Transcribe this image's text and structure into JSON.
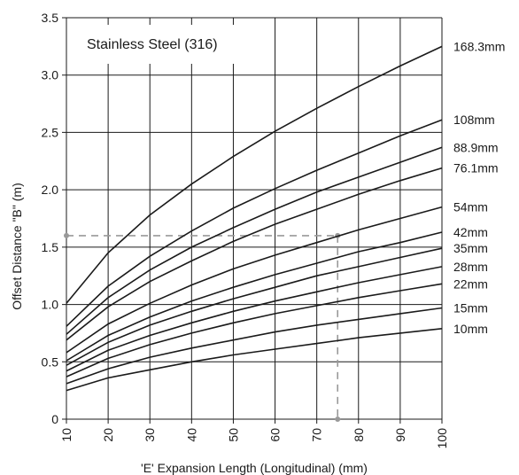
{
  "chart_data": {
    "type": "line",
    "title": "Stainless Steel (316)",
    "xlabel": "'E' Expansion Length (Longitudinal) (mm)",
    "ylabel": "Offset Distance \"B\" (m)",
    "x_ticks": [
      "10",
      "20",
      "30",
      "40",
      "50",
      "60",
      "70",
      "80",
      "90",
      "100"
    ],
    "y_ticks": [
      "0",
      "0.5",
      "1.0",
      "1.5",
      "2.0",
      "2.5",
      "3.0",
      "3.5"
    ],
    "xlim": [
      10,
      100
    ],
    "ylim": [
      0,
      3.5
    ],
    "grid": true,
    "legend": "labels at right end of each line",
    "x": [
      10,
      20,
      30,
      40,
      50,
      60,
      70,
      80,
      90,
      100
    ],
    "series": [
      {
        "name": "168.3mm",
        "values": [
          1.01,
          1.45,
          1.78,
          2.05,
          2.29,
          2.51,
          2.71,
          2.9,
          3.08,
          3.25
        ]
      },
      {
        "name": "108mm",
        "values": [
          0.81,
          1.16,
          1.42,
          1.64,
          1.84,
          2.01,
          2.17,
          2.32,
          2.47,
          2.61
        ]
      },
      {
        "name": "88.9mm",
        "values": [
          0.74,
          1.06,
          1.3,
          1.5,
          1.67,
          1.83,
          1.98,
          2.11,
          2.24,
          2.37
        ]
      },
      {
        "name": "76.1mm",
        "values": [
          0.69,
          0.98,
          1.2,
          1.38,
          1.55,
          1.7,
          1.83,
          1.96,
          2.08,
          2.19
        ]
      },
      {
        "name": "54mm",
        "values": [
          0.58,
          0.83,
          1.01,
          1.17,
          1.31,
          1.43,
          1.54,
          1.65,
          1.75,
          1.85
        ]
      },
      {
        "name": "42mm",
        "values": [
          0.51,
          0.73,
          0.89,
          1.03,
          1.15,
          1.26,
          1.36,
          1.46,
          1.54,
          1.63
        ]
      },
      {
        "name": "35mm",
        "values": [
          0.47,
          0.67,
          0.82,
          0.94,
          1.05,
          1.15,
          1.25,
          1.33,
          1.41,
          1.49
        ]
      },
      {
        "name": "28mm",
        "values": [
          0.42,
          0.6,
          0.73,
          0.84,
          0.94,
          1.03,
          1.11,
          1.19,
          1.26,
          1.33
        ]
      },
      {
        "name": "22mm",
        "values": [
          0.37,
          0.53,
          0.65,
          0.75,
          0.84,
          0.92,
          0.99,
          1.06,
          1.12,
          1.18
        ]
      },
      {
        "name": "15mm",
        "values": [
          0.31,
          0.44,
          0.54,
          0.62,
          0.69,
          0.76,
          0.82,
          0.87,
          0.92,
          0.97
        ]
      },
      {
        "name": "10mm",
        "values": [
          0.25,
          0.36,
          0.43,
          0.5,
          0.56,
          0.61,
          0.66,
          0.71,
          0.75,
          0.79
        ]
      }
    ],
    "annotation": {
      "x": 75,
      "y": 1.6,
      "style": "dashed"
    },
    "colors": {
      "line": "#1a1a1a",
      "grid": "#1a1a1a",
      "annotation": "#999999"
    }
  }
}
